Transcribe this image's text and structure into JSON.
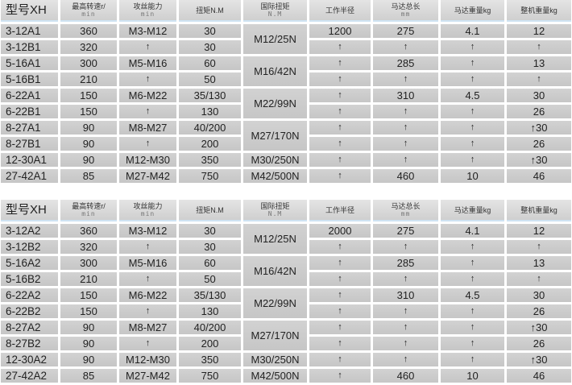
{
  "headers": [
    {
      "main": "型号XH",
      "sub": ""
    },
    {
      "main": "最高转速r/",
      "sub": "min"
    },
    {
      "main": "攻丝能力",
      "sub": "min"
    },
    {
      "main": "扭矩N.M",
      "sub": ""
    },
    {
      "main": "国际扭矩",
      "sub": "N.M"
    },
    {
      "main": "工作半径",
      "sub": ""
    },
    {
      "main": "马达总长",
      "sub": "mm"
    },
    {
      "main": "马达重量kg",
      "sub": ""
    },
    {
      "main": "整机重量kg",
      "sub": ""
    }
  ],
  "tables": [
    {
      "rows": [
        [
          "3-12A1",
          "360",
          "M3-M12",
          "30",
          "1200",
          "275",
          "4.1",
          "12"
        ],
        [
          "3-12B1",
          "320",
          "↑",
          "30",
          "↑",
          "↑",
          "↑",
          "↑"
        ],
        [
          "5-16A1",
          "300",
          "M5-M16",
          "60",
          "↑",
          "285",
          "↑",
          "13"
        ],
        [
          "5-16B1",
          "210",
          "↑",
          "50",
          "↑",
          "↑",
          "↑",
          "↑"
        ],
        [
          "6-22A1",
          "150",
          "M6-M22",
          "35/130",
          "↑",
          "310",
          "4.5",
          "30"
        ],
        [
          "6-22B1",
          "150",
          "↑",
          "130",
          "↑",
          "↑",
          "↑",
          "26"
        ],
        [
          "8-27A1",
          "90",
          "M8-M27",
          "40/200",
          "↑",
          "↑",
          "↑",
          "↑30"
        ],
        [
          "8-27B1",
          "90",
          "↑",
          "200",
          "↑",
          "↑",
          "↑",
          "26"
        ],
        [
          "12-30A1",
          "90",
          "M12-M30",
          "350",
          "↑",
          "↑",
          "↑",
          "↑30"
        ],
        [
          "27-42A1",
          "85",
          "M27-M42",
          "750",
          "↑",
          "460",
          "10",
          "46"
        ]
      ],
      "intl_torque": [
        {
          "text": "M12/25N",
          "span": 2
        },
        {
          "text": "M16/42N",
          "span": 2
        },
        {
          "text": "M22/99N",
          "span": 2
        },
        {
          "text": "M27/170N",
          "span": 2
        },
        {
          "text": "M30/250N",
          "span": 1
        },
        {
          "text": "M42/500N",
          "span": 1
        }
      ]
    },
    {
      "rows": [
        [
          "3-12A2",
          "360",
          "M3-M12",
          "30",
          "2000",
          "275",
          "4.1",
          "12"
        ],
        [
          "3-12B2",
          "320",
          "↑",
          "30",
          "↑",
          "↑",
          "↑",
          "↑"
        ],
        [
          "5-16A2",
          "300",
          "M5-M16",
          "60",
          "↑",
          "285",
          "↑",
          "13"
        ],
        [
          "5-16B2",
          "210",
          "↑",
          "50",
          "↑",
          "↑",
          "↑",
          "↑"
        ],
        [
          "6-22A2",
          "150",
          "M6-M22",
          "35/130",
          "↑",
          "310",
          "4.5",
          "30"
        ],
        [
          "6-22B2",
          "150",
          "↑",
          "130",
          "↑",
          "↑",
          "↑",
          "26"
        ],
        [
          "8-27A2",
          "90",
          "M8-M27",
          "40/200",
          "↑",
          "↑",
          "↑",
          "↑30"
        ],
        [
          "8-27B2",
          "90",
          "↑",
          "200",
          "↑",
          "↑",
          "↑",
          "26"
        ],
        [
          "12-30A2",
          "90",
          "M12-M30",
          "350",
          "↑",
          "↑",
          "↑",
          "↑30"
        ],
        [
          "27-42A2",
          "85",
          "M27-M42",
          "750",
          "↑",
          "460",
          "10",
          "46"
        ]
      ],
      "intl_torque": [
        {
          "text": "M12/25N",
          "span": 2
        },
        {
          "text": "M16/42N",
          "span": 2
        },
        {
          "text": "M22/99N",
          "span": 2
        },
        {
          "text": "M27/170N",
          "span": 2
        },
        {
          "text": "M30/250N",
          "span": 1
        },
        {
          "text": "M42/500N",
          "span": 1
        }
      ]
    }
  ]
}
